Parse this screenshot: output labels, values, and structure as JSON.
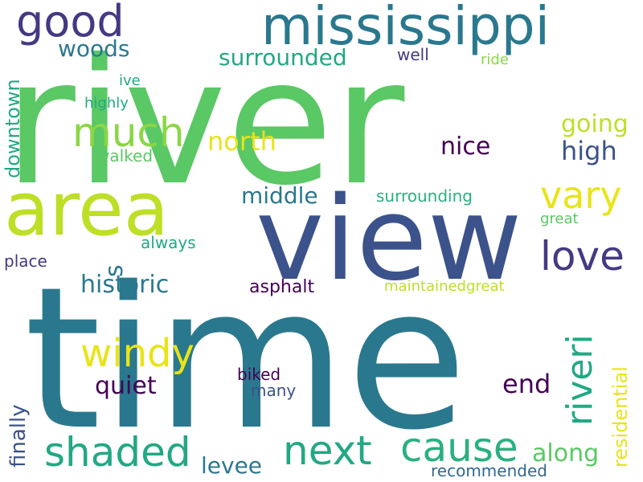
{
  "colors": {
    "background": "#ffffff",
    "green": "#5ac864",
    "lime": "#bddf26",
    "yellow": "#e8e419",
    "teal": "#2a788e",
    "blue": "#3b528b",
    "indigo": "#443983",
    "purple": "#440154",
    "sea": "#22a884",
    "aqua": "#2ab07f",
    "steel": "#31688e",
    "light": "#8bd646"
  },
  "words": {
    "time": "time",
    "river": "river",
    "view": "view",
    "area": "area",
    "mississippi": "mississippi",
    "good": "good",
    "much": "much",
    "vary": "vary",
    "love": "love",
    "windy": "windy",
    "next": "next",
    "cause": "cause",
    "shaded": "shaded",
    "riveri": "riveri",
    "historic": "historic",
    "middle": "middle",
    "north": "north",
    "nice": "nice",
    "high": "high",
    "going": "going",
    "surrounded": "surrounded",
    "woods": "woods",
    "well": "well",
    "ride": "ride",
    "ive": "ive",
    "highly": "highly",
    "walked": "walked",
    "downtown": "downtown",
    "surrounding": "surrounding",
    "great": "great",
    "always": "always",
    "place": "place",
    "s": "s",
    "asphalt": "asphalt",
    "maintainedgreat": "maintainedgreat",
    "residential": "residential",
    "finally": "finally",
    "quiet": "quiet",
    "end": "end",
    "biked": "biked",
    "many": "many",
    "along": "along",
    "levee": "levee",
    "recommended": "recommended"
  }
}
